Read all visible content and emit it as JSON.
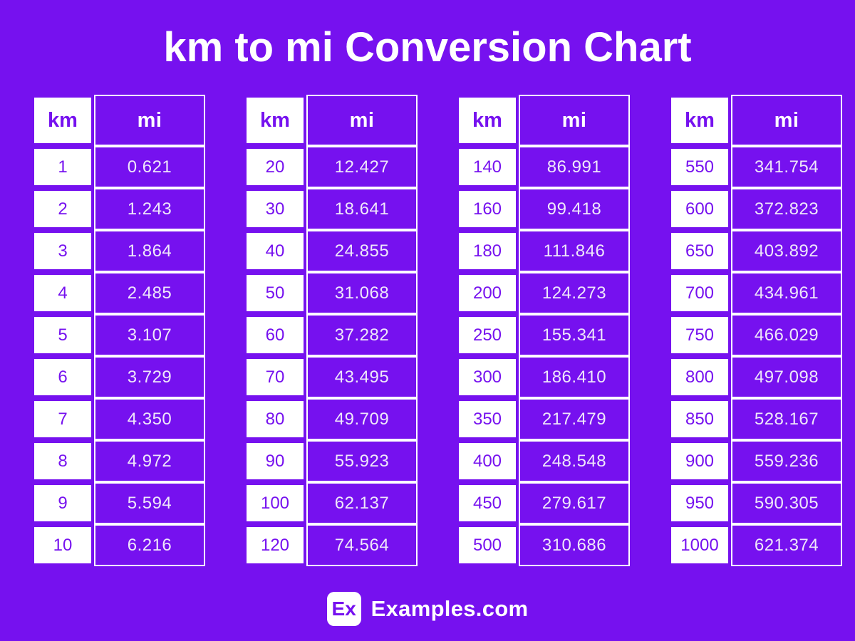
{
  "page": {
    "title": "km to mi Conversion Chart",
    "colors": {
      "background": "#7611EF",
      "km_cell_fill": "#FFFFFF",
      "km_text": "#7611EF",
      "mi_cell_fill": "#7611EF",
      "mi_value_text": "#EFE7FA",
      "header_text_white": "#FFFFFF"
    }
  },
  "columns": {
    "km_label": "km",
    "mi_label": "mi"
  },
  "chart_data": {
    "type": "table",
    "title": "km to mi Conversion Chart",
    "columns": [
      "km",
      "mi"
    ],
    "tables": [
      {
        "rows": [
          [
            "1",
            "0.621"
          ],
          [
            "2",
            "1.243"
          ],
          [
            "3",
            "1.864"
          ],
          [
            "4",
            "2.485"
          ],
          [
            "5",
            "3.107"
          ],
          [
            "6",
            "3.729"
          ],
          [
            "7",
            "4.350"
          ],
          [
            "8",
            "4.972"
          ],
          [
            "9",
            "5.594"
          ],
          [
            "10",
            "6.216"
          ]
        ]
      },
      {
        "rows": [
          [
            "20",
            "12.427"
          ],
          [
            "30",
            "18.641"
          ],
          [
            "40",
            "24.855"
          ],
          [
            "50",
            "31.068"
          ],
          [
            "60",
            "37.282"
          ],
          [
            "70",
            "43.495"
          ],
          [
            "80",
            "49.709"
          ],
          [
            "90",
            "55.923"
          ],
          [
            "100",
            "62.137"
          ],
          [
            "120",
            "74.564"
          ]
        ]
      },
      {
        "rows": [
          [
            "140",
            "86.991"
          ],
          [
            "160",
            "99.418"
          ],
          [
            "180",
            "111.846"
          ],
          [
            "200",
            "124.273"
          ],
          [
            "250",
            "155.341"
          ],
          [
            "300",
            "186.410"
          ],
          [
            "350",
            "217.479"
          ],
          [
            "400",
            "248.548"
          ],
          [
            "450",
            "279.617"
          ],
          [
            "500",
            "310.686"
          ]
        ]
      },
      {
        "rows": [
          [
            "550",
            "341.754"
          ],
          [
            "600",
            "372.823"
          ],
          [
            "650",
            "403.892"
          ],
          [
            "700",
            "434.961"
          ],
          [
            "750",
            "466.029"
          ],
          [
            "800",
            "497.098"
          ],
          [
            "850",
            "528.167"
          ],
          [
            "900",
            "559.236"
          ],
          [
            "950",
            "590.305"
          ],
          [
            "1000",
            "621.374"
          ]
        ]
      }
    ]
  },
  "footer": {
    "logo": "Ex",
    "brand": "Examples.com"
  }
}
